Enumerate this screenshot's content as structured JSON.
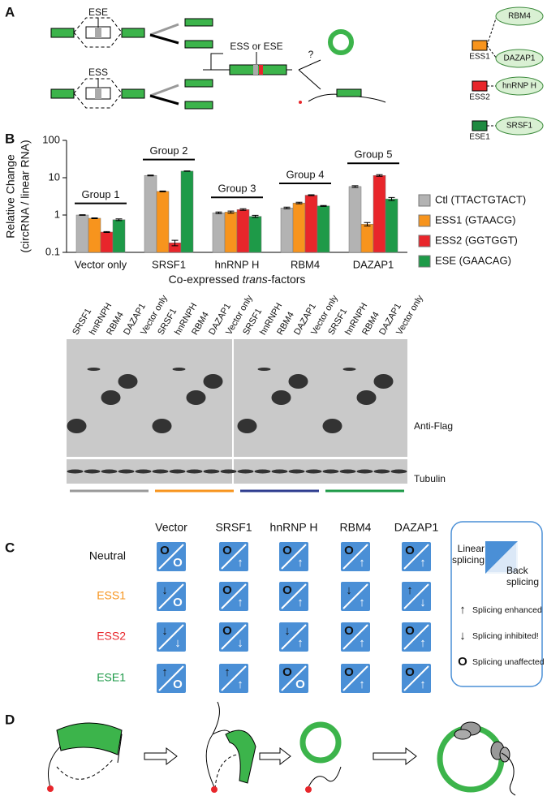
{
  "panels": {
    "a": "A",
    "b": "B",
    "c": "C",
    "d": "D"
  },
  "panel_a": {
    "ese_label": "ESE",
    "ess_label": "ESS",
    "reporter_label": "ESS or ESE",
    "question": "?",
    "factors": [
      {
        "element": "ESS1",
        "color": "#f7941d",
        "partners": [
          "RBM4",
          "DAZAP1"
        ]
      },
      {
        "element": "ESS2",
        "color": "#e8262b",
        "partners": [
          "hnRNP H"
        ]
      },
      {
        "element": "ESE1",
        "color": "#1e8a40",
        "partners": [
          "SRSF1"
        ]
      }
    ]
  },
  "chart_data": {
    "type": "bar",
    "y_label": [
      "Relative Change",
      "(circRNA / linear RNA)"
    ],
    "x_label": [
      "Co-expressed ",
      "trans",
      "-factors"
    ],
    "categories": [
      "Vector only",
      "SRSF1",
      "hnRNP H",
      "RBM4",
      "DAZAP1"
    ],
    "group_labels": [
      "Group 1",
      "Group 2",
      "Group 3",
      "Group 4",
      "Group 5"
    ],
    "series": [
      {
        "name": "Ctl (TTACTGTACT)",
        "color": "#b3b3b3",
        "values": [
          1.0,
          11.5,
          1.15,
          1.55,
          5.8
        ],
        "errors": [
          0.02,
          0.3,
          0.06,
          0.08,
          0.3
        ]
      },
      {
        "name": "ESS1 (GTAACG)",
        "color": "#f7941d",
        "values": [
          0.82,
          4.3,
          1.2,
          2.1,
          0.57
        ],
        "errors": [
          0.02,
          0.1,
          0.08,
          0.1,
          0.06
        ]
      },
      {
        "name": "ESS2 (GGTGGT)",
        "color": "#e8262b",
        "values": [
          0.35,
          0.18,
          1.4,
          3.4,
          11.5
        ],
        "errors": [
          0.01,
          0.03,
          0.07,
          0.1,
          0.6
        ]
      },
      {
        "name": "ESE (GAACAG)",
        "color": "#1e9a48",
        "values": [
          0.75,
          15,
          0.92,
          1.75,
          2.7
        ],
        "errors": [
          0.04,
          0.2,
          0.06,
          0.05,
          0.25
        ]
      }
    ],
    "log_scale": true,
    "ylim": [
      0.1,
      100
    ],
    "yticks": [
      0.1,
      1,
      10,
      100
    ],
    "legend": "right"
  },
  "blot": {
    "lanes": [
      "SRSF1",
      "hnRNPH",
      "RBM4",
      "DAZAP1",
      "Vector only"
    ],
    "antibodies": [
      "Anti-Flag",
      "Tubulin"
    ],
    "underline_colors": [
      "#999999",
      "#f7941d",
      "#2e3d8f",
      "#1e9a48"
    ]
  },
  "panel_c": {
    "columns": [
      "Vector",
      "SRSF1",
      "hnRNP H",
      "RBM4",
      "DAZAP1"
    ],
    "rows": [
      {
        "label": "Neutral",
        "color": "#111111",
        "cells": [
          [
            "O",
            "O"
          ],
          [
            "O",
            "↑"
          ],
          [
            "O",
            "↑"
          ],
          [
            "O",
            "↑"
          ],
          [
            "O",
            "↑"
          ]
        ]
      },
      {
        "label": "ESS1",
        "color": "#f7941d",
        "cells": [
          [
            "↓",
            "O"
          ],
          [
            "O",
            "↑"
          ],
          [
            "O",
            "↑"
          ],
          [
            "↓",
            "↑"
          ],
          [
            "↑",
            "↓"
          ]
        ]
      },
      {
        "label": "ESS2",
        "color": "#e8262b",
        "cells": [
          [
            "↓",
            "↓"
          ],
          [
            "O",
            "↓"
          ],
          [
            "↓",
            "↑"
          ],
          [
            "O",
            "↑"
          ],
          [
            "O",
            "↑"
          ]
        ]
      },
      {
        "label": "ESE1",
        "color": "#1e9a48",
        "cells": [
          [
            "↑",
            "O"
          ],
          [
            "↑",
            "↑"
          ],
          [
            "O",
            "O"
          ],
          [
            "O",
            "↑"
          ],
          [
            "O",
            "↑"
          ]
        ]
      }
    ],
    "legend": {
      "linear": [
        "Linear",
        "splicing"
      ],
      "back": [
        "Back",
        "splicing"
      ],
      "items": [
        [
          "↑",
          "Splicing enhanced"
        ],
        [
          "↓",
          "Splicing inhibited!"
        ],
        [
          "O",
          "Splicing unaffected"
        ]
      ]
    }
  }
}
